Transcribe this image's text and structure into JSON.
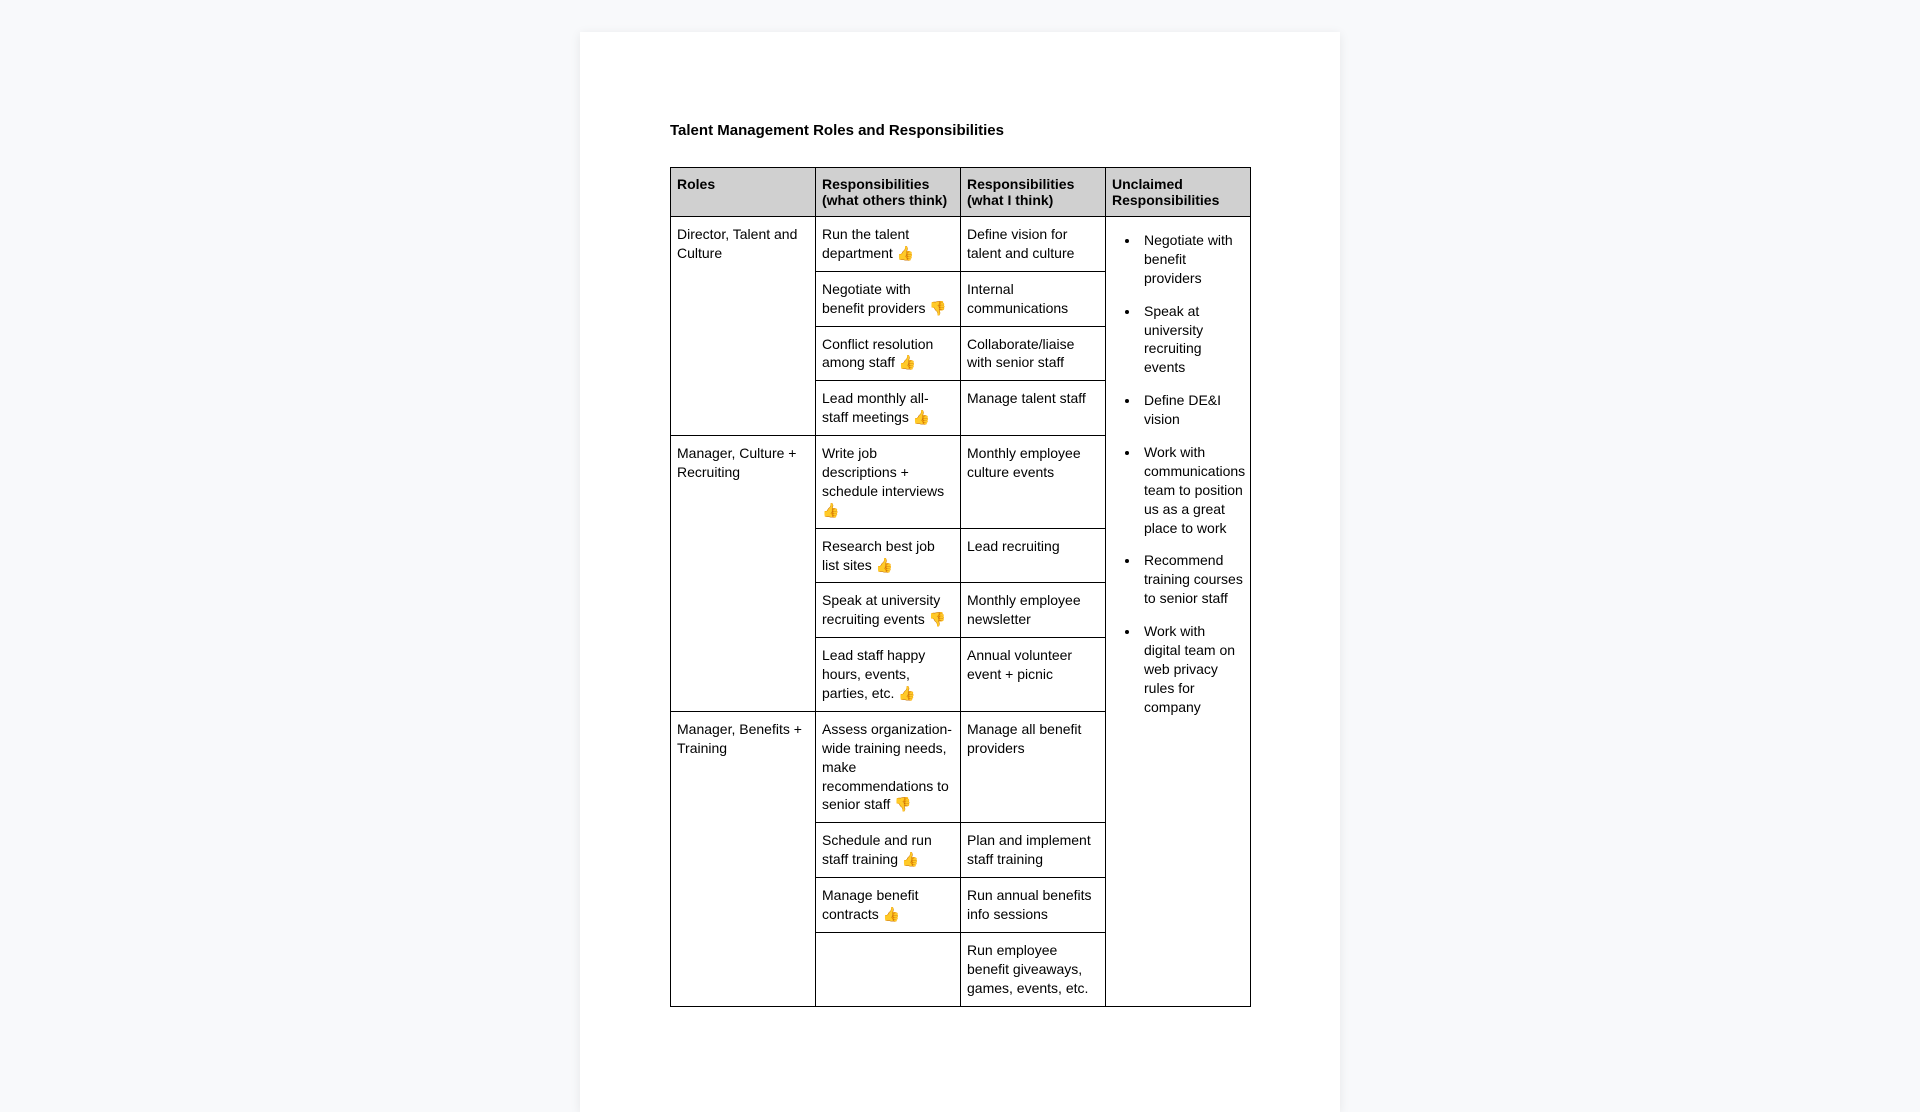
{
  "document": {
    "title": "Talent Management Roles and Responsibilities"
  },
  "table": {
    "headers": {
      "roles": "Roles",
      "others": "Responsibilities (what others think)",
      "ithink": "Responsibilities (what I think)",
      "unclaimed": "Unclaimed Responsibilities"
    },
    "roles": [
      {
        "name": "Director, Talent and Culture",
        "others": [
          "Run the talent department 👍",
          "Negotiate with benefit providers 👎",
          "Conflict resolution among staff 👍",
          "Lead monthly all-staff meetings 👍"
        ],
        "ithink": [
          "Define vision for talent and culture",
          "Internal communications",
          "Collaborate/liaise with senior staff",
          "Manage talent staff"
        ]
      },
      {
        "name": "Manager, Culture + Recruiting",
        "others": [
          "Write job descriptions + schedule interviews 👍",
          "Research best job list sites 👍",
          "Speak at university recruiting events 👎",
          "Lead staff happy hours, events, parties, etc. 👍"
        ],
        "ithink": [
          "Monthly employee culture events",
          "Lead recruiting",
          "Monthly employee newsletter",
          "Annual volunteer event + picnic"
        ]
      },
      {
        "name": "Manager, Benefits + Training",
        "others": [
          "Assess organization-wide training needs, make recommendations to senior staff 👎",
          "Schedule and run staff training 👍",
          "Manage benefit contracts 👍",
          ""
        ],
        "ithink": [
          "Manage all benefit providers",
          "Plan and implement staff training",
          "Run annual benefits info sessions",
          "Run employee benefit giveaways, games, events, etc."
        ]
      }
    ],
    "unclaimed": [
      "Negotiate with benefit providers",
      "Speak at university recruiting events",
      "Define DE&I vision",
      "Work with communications team to position us as a great place to work",
      "Recommend training courses to senior staff",
      "Work with digital team on web privacy rules for company"
    ]
  },
  "colors": {
    "page_bg": "#f8f9fb",
    "doc_bg": "#ffffff",
    "header_bg": "#d0d0d0",
    "border": "#000000",
    "text": "#000000"
  }
}
